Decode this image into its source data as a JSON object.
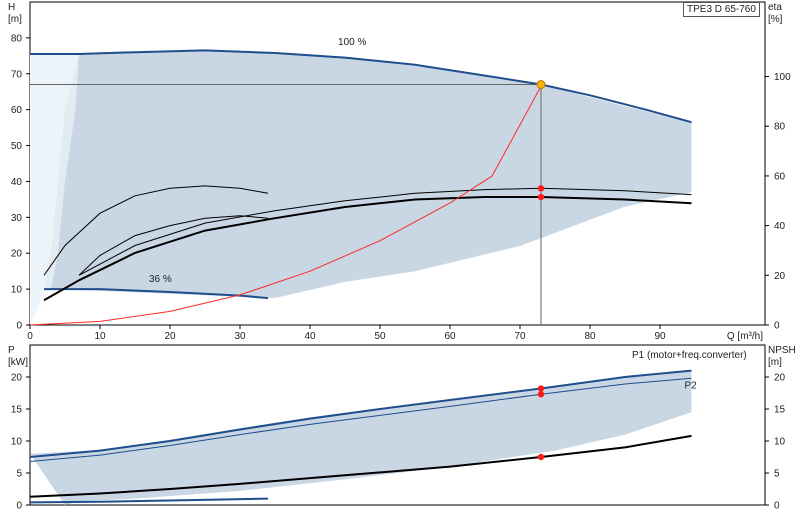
{
  "model_label": "TPE3 D 65-760",
  "colors": {
    "area_fill": "#c9d6e3",
    "area_fill_light": "#e4edf5",
    "pump_curve": "#1f4e8c",
    "efficiency_curve": "#000000",
    "system_curve": "#ff2a2a",
    "duty_marker": "#ff1a1a",
    "duty_point": "#f5b400",
    "grid": "#000000",
    "axis_text": "#222222"
  },
  "chart_data": [
    {
      "id": "head-efficiency",
      "type": "line",
      "x_label": "Q [m³/h]",
      "y_left_label": [
        "H",
        "[m]"
      ],
      "y_right_label": [
        "eta",
        "[%]"
      ],
      "xlim": [
        0,
        105
      ],
      "ylim_left": [
        0,
        90
      ],
      "ylim_right": [
        0,
        130
      ],
      "x_ticks": [
        0,
        10,
        20,
        30,
        40,
        50,
        60,
        70,
        80,
        90
      ],
      "y_left_ticks": [
        0,
        10,
        20,
        30,
        40,
        50,
        60,
        70,
        80
      ],
      "y_right_ticks": [
        0,
        20,
        40,
        60,
        80,
        100
      ],
      "grid": false,
      "operating_area": {
        "upper": [
          [
            0,
            75.5
          ],
          [
            7,
            75.5
          ],
          [
            25,
            76.5
          ],
          [
            45,
            74.5
          ],
          [
            60,
            71
          ],
          [
            73,
            67
          ],
          [
            85,
            61
          ],
          [
            94.5,
            56.5
          ]
        ],
        "lower": [
          [
            94.5,
            37
          ],
          [
            85,
            33
          ],
          [
            70,
            22
          ],
          [
            55,
            15
          ],
          [
            45,
            12
          ],
          [
            35,
            7.5
          ],
          [
            10,
            9.5
          ],
          [
            5,
            9.8
          ],
          [
            2,
            10
          ]
        ]
      },
      "low_flow_region": {
        "outer": [
          [
            0,
            75.5
          ],
          [
            7,
            75.5
          ],
          [
            5,
            60
          ],
          [
            4,
            40
          ],
          [
            3,
            20
          ],
          [
            2,
            10
          ],
          [
            0,
            0
          ]
        ],
        "inner": [
          [
            0,
            75.5
          ],
          [
            7,
            75.5
          ],
          [
            6.5,
            60
          ],
          [
            5,
            40
          ],
          [
            4,
            20
          ],
          [
            3,
            10
          ],
          [
            0,
            0
          ]
        ]
      },
      "series": [
        {
          "name": "100 %",
          "axis": "left",
          "role": "pump",
          "points": [
            [
              0,
              75.5
            ],
            [
              7,
              75.5
            ],
            [
              15,
              76
            ],
            [
              25,
              76.5
            ],
            [
              35,
              75.8
            ],
            [
              45,
              74.5
            ],
            [
              55,
              72.5
            ],
            [
              65,
              69.5
            ],
            [
              73,
              67
            ],
            [
              80,
              64
            ],
            [
              88,
              60
            ],
            [
              94.5,
              56.5
            ]
          ]
        },
        {
          "name": "36 %",
          "axis": "left",
          "role": "pump",
          "points": [
            [
              2,
              10
            ],
            [
              10,
              10
            ],
            [
              20,
              9.2
            ],
            [
              30,
              8.2
            ],
            [
              34,
              7.5
            ]
          ]
        },
        {
          "name": "",
          "axis": "right",
          "role": "efficiency-thin",
          "points": [
            [
              2,
              20
            ],
            [
              5,
              32
            ],
            [
              10,
              45
            ],
            [
              15,
              52
            ],
            [
              20,
              55
            ],
            [
              25,
              56
            ],
            [
              30,
              55
            ],
            [
              34,
              53
            ]
          ]
        },
        {
          "name": "",
          "axis": "right",
          "role": "efficiency-thin",
          "points": [
            [
              7,
              20
            ],
            [
              10,
              28
            ],
            [
              15,
              36
            ],
            [
              20,
              40
            ],
            [
              25,
              43
            ],
            [
              30,
              44
            ],
            [
              34,
              43
            ]
          ]
        },
        {
          "name": "",
          "axis": "right",
          "role": "efficiency-thin",
          "points": [
            [
              7,
              20
            ],
            [
              15,
              32
            ],
            [
              25,
              41
            ],
            [
              35,
              46
            ],
            [
              45,
              50
            ],
            [
              55,
              53
            ],
            [
              65,
              54.5
            ],
            [
              73,
              55
            ],
            [
              85,
              54
            ],
            [
              94.5,
              52.5
            ]
          ]
        },
        {
          "name": "",
          "axis": "right",
          "role": "efficiency",
          "points": [
            [
              2,
              10
            ],
            [
              7,
              18
            ],
            [
              15,
              29
            ],
            [
              25,
              38
            ],
            [
              35,
              43
            ],
            [
              45,
              47.5
            ],
            [
              55,
              50.5
            ],
            [
              65,
              51.5
            ],
            [
              73,
              51.5
            ],
            [
              85,
              50.5
            ],
            [
              94.5,
              49
            ]
          ]
        },
        {
          "name": "",
          "axis": "left",
          "role": "system",
          "points": [
            [
              0,
              0
            ],
            [
              10,
              1
            ],
            [
              20,
              3.8
            ],
            [
              30,
              8.4
            ],
            [
              40,
              15
            ],
            [
              50,
              23.5
            ],
            [
              60,
              34
            ],
            [
              66,
              41.5
            ],
            [
              73,
              66.5
            ]
          ]
        }
      ],
      "duty_point": {
        "q": 73,
        "h": 67
      },
      "markers_right": [
        {
          "q": 73,
          "v": 55
        },
        {
          "q": 73,
          "v": 51.5
        }
      ],
      "series_labels": [
        {
          "series": 0,
          "anchor_x": 44,
          "anchor_y": 78
        },
        {
          "series": 1,
          "anchor_x": 17,
          "anchor_y": 12
        }
      ]
    },
    {
      "id": "power-npsh",
      "type": "line",
      "x_label": "",
      "y_left_label": [
        "P",
        "[kW]"
      ],
      "y_right_label": [
        "NPSH",
        "[m]"
      ],
      "xlim": [
        0,
        105
      ],
      "ylim_left": [
        0,
        25
      ],
      "ylim_right": [
        0,
        25
      ],
      "y_left_ticks": [
        0,
        5,
        10,
        15,
        20
      ],
      "y_right_ticks": [
        0,
        5,
        10,
        15,
        20
      ],
      "grid": false,
      "operating_area": {
        "upper": [
          [
            0,
            8
          ],
          [
            10,
            8.6
          ],
          [
            20,
            10.2
          ],
          [
            30,
            12
          ],
          [
            40,
            13.7
          ],
          [
            50,
            15.1
          ],
          [
            60,
            16.4
          ],
          [
            73,
            18.2
          ],
          [
            85,
            20
          ],
          [
            94.5,
            21
          ]
        ],
        "lower": [
          [
            94.5,
            14.5
          ],
          [
            85,
            11
          ],
          [
            75,
            8.5
          ],
          [
            60,
            6
          ],
          [
            45,
            4
          ],
          [
            30,
            2.2
          ],
          [
            15,
            1
          ],
          [
            7,
            0.6
          ],
          [
            5,
            0
          ]
        ]
      },
      "series": [
        {
          "name": "P1 (motor+freq.converter)",
          "axis": "left",
          "role": "pump",
          "points": [
            [
              0,
              7.5
            ],
            [
              10,
              8.5
            ],
            [
              20,
              10
            ],
            [
              30,
              11.8
            ],
            [
              40,
              13.5
            ],
            [
              50,
              15
            ],
            [
              60,
              16.4
            ],
            [
              73,
              18.2
            ],
            [
              85,
              20
            ],
            [
              94.5,
              21
            ]
          ]
        },
        {
          "name": "P2",
          "axis": "left",
          "role": "pump-thin",
          "points": [
            [
              0,
              6.8
            ],
            [
              10,
              7.8
            ],
            [
              20,
              9.3
            ],
            [
              30,
              11
            ],
            [
              40,
              12.6
            ],
            [
              50,
              14
            ],
            [
              60,
              15.4
            ],
            [
              73,
              17.3
            ],
            [
              85,
              18.9
            ],
            [
              94.5,
              19.8
            ]
          ]
        },
        {
          "name": "",
          "axis": "right",
          "role": "npsh",
          "points": [
            [
              0,
              1.3
            ],
            [
              10,
              1.8
            ],
            [
              20,
              2.5
            ],
            [
              30,
              3.3
            ],
            [
              40,
              4.2
            ],
            [
              50,
              5.1
            ],
            [
              60,
              6
            ],
            [
              73,
              7.5
            ],
            [
              85,
              9
            ],
            [
              94.5,
              10.8
            ]
          ]
        },
        {
          "name": "",
          "axis": "left",
          "role": "pump",
          "points": [
            [
              0,
              0.4
            ],
            [
              10,
              0.5
            ],
            [
              20,
              0.7
            ],
            [
              34,
              1
            ]
          ]
        }
      ],
      "markers_left": [
        {
          "q": 73,
          "v": 18.2
        },
        {
          "q": 73,
          "v": 17.3
        }
      ],
      "markers_right": [
        {
          "q": 73,
          "v": 7.5
        }
      ],
      "series_labels": [
        {
          "series": 0,
          "anchor_x": 86,
          "anchor_y": 23
        },
        {
          "series": 1,
          "anchor_x": 93.5,
          "anchor_y": 18.2
        }
      ]
    }
  ]
}
